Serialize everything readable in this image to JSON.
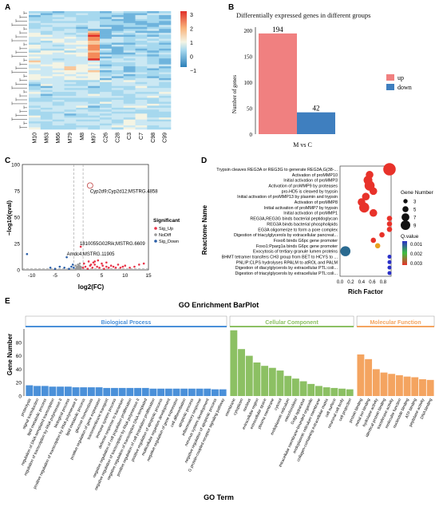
{
  "panels": {
    "A": "A",
    "B": "B",
    "C": "C",
    "D": "D",
    "E": "E"
  },
  "heatmap": {
    "samples": [
      "M10",
      "M63",
      "M66",
      "M79",
      "M8",
      "M97",
      "C26",
      "C28",
      "C3",
      "C7",
      "C98",
      "C99"
    ],
    "scale_ticks": [
      "3",
      "2",
      "1",
      "0",
      "−1"
    ]
  },
  "chart_data": [
    {
      "id": "B",
      "type": "bar",
      "title": "Differentially expressed genes in different groups",
      "xlabel": "M vs C",
      "ylabel": "Number of genes",
      "ylim": [
        0,
        200
      ],
      "yticks": [
        "0",
        "50",
        "100",
        "150",
        "200"
      ],
      "series": [
        {
          "name": "up",
          "values": [
            194
          ],
          "color": "#f08080"
        },
        {
          "name": "down",
          "values": [
            42
          ],
          "color": "#3f7fbf"
        }
      ],
      "data_labels": [
        "194",
        "42"
      ],
      "legend": "right"
    },
    {
      "id": "C",
      "type": "scatter",
      "xlabel": "log2(FC)",
      "ylabel": "−log10(qval)",
      "xlim": [
        -12,
        15
      ],
      "ylim": [
        0,
        100
      ],
      "xticks": [
        "-10",
        "-5",
        "0",
        "5",
        "10",
        "15"
      ],
      "yticks": [
        "0",
        "25",
        "50",
        "75",
        "100"
      ],
      "legend_title": "Significant",
      "legend": [
        "Sig_Up",
        "NoDiff",
        "Sig_Down"
      ],
      "annotations": [
        {
          "text": "Cyp2d9;Cyp2d12;MSTRG.4858",
          "x": 2.5,
          "y": 80
        },
        {
          "text": "1810055G02Rik;MSTRG.6609",
          "x": 0.3,
          "y": 22
        },
        {
          "text": "Amdc4;MSTRG.11905",
          "x": -2.5,
          "y": 12
        }
      ],
      "highlight": {
        "x": 2.5,
        "y": 80
      },
      "up_points": [
        [
          1,
          2
        ],
        [
          1.5,
          3
        ],
        [
          2,
          1
        ],
        [
          2.5,
          4
        ],
        [
          3,
          2
        ],
        [
          3.5,
          5
        ],
        [
          4,
          3
        ],
        [
          4.5,
          2
        ],
        [
          5,
          6
        ],
        [
          5.5,
          1
        ],
        [
          6,
          3
        ],
        [
          6.5,
          2
        ],
        [
          7,
          4
        ],
        [
          7.5,
          3
        ],
        [
          8,
          2
        ],
        [
          8.5,
          5
        ],
        [
          9,
          2
        ],
        [
          9.5,
          3
        ],
        [
          10,
          4
        ],
        [
          11,
          2
        ],
        [
          12,
          3
        ],
        [
          13,
          5
        ],
        [
          14,
          6
        ],
        [
          1.2,
          6
        ],
        [
          2.2,
          8
        ],
        [
          3.2,
          7
        ],
        [
          0.5,
          22
        ],
        [
          3.5,
          8
        ],
        [
          4.2,
          9
        ],
        [
          6,
          7
        ],
        [
          2.7,
          5
        ],
        [
          5.2,
          4
        ]
      ],
      "down_points": [
        [
          -1,
          2
        ],
        [
          -1.5,
          3
        ],
        [
          -2,
          1
        ],
        [
          -2.5,
          12
        ],
        [
          -3,
          2
        ],
        [
          -4,
          3
        ],
        [
          -5,
          1
        ],
        [
          -6,
          2
        ],
        [
          -1.2,
          5
        ],
        [
          -11,
          15
        ]
      ],
      "nodiff_points": [
        [
          0,
          1
        ],
        [
          0.2,
          2
        ],
        [
          -0.2,
          3
        ],
        [
          0.4,
          1
        ],
        [
          -0.4,
          2
        ],
        [
          0.1,
          4
        ],
        [
          -0.1,
          5
        ],
        [
          0.3,
          6
        ],
        [
          -0.3,
          2
        ],
        [
          0.5,
          3
        ],
        [
          -0.5,
          1
        ],
        [
          0.6,
          2
        ],
        [
          -0.6,
          4
        ],
        [
          0.05,
          0.5
        ],
        [
          0.15,
          1.5
        ],
        [
          -0.15,
          2.5
        ],
        [
          0.25,
          3.5
        ],
        [
          -0.25,
          0.8
        ],
        [
          0.35,
          1.2
        ],
        [
          -0.35,
          1.8
        ]
      ]
    },
    {
      "id": "D",
      "type": "scatter",
      "xlabel": "Rich Factor",
      "ylabel": "Reactome Name",
      "xlim": [
        0,
        0.95
      ],
      "xticks": [
        "0.0",
        "0.2",
        "0.4",
        "0.6",
        "0.8"
      ],
      "size_legend_title": "Gene Number",
      "size_legend": [
        "3",
        "5",
        "7",
        "9"
      ],
      "color_legend_title": "Q.value",
      "color_legend": [
        "0.003",
        "0.002",
        "0.001"
      ],
      "terms": [
        {
          "name": "Trypsin cleaves REG3A or REG3G to generate REG3A,G(38-...",
          "x": 0.92,
          "size": 9,
          "color": "#e8322a"
        },
        {
          "name": "Activation of proMMP10",
          "x": 0.55,
          "size": 5,
          "color": "#e8322a"
        },
        {
          "name": "Initial activation of proMMP3",
          "x": 0.52,
          "size": 6,
          "color": "#e8322a"
        },
        {
          "name": "Activation of proMMP9 by proteases",
          "x": 0.55,
          "size": 7,
          "color": "#e8322a"
        },
        {
          "name": "pro-HD5 is cleaved by trypsin",
          "x": 0.62,
          "size": 5,
          "color": "#e8322a"
        },
        {
          "name": "Initial activation of proMMP13 by plasmin and trypsin",
          "x": 0.48,
          "size": 5,
          "color": "#e8322a"
        },
        {
          "name": "Activation of proMMP8",
          "x": 0.4,
          "size": 5,
          "color": "#e8322a"
        },
        {
          "name": "Initial activation of proMMP7 by trypsin",
          "x": 0.45,
          "size": 7,
          "color": "#e8322a"
        },
        {
          "name": "Initial activation of proMMP1",
          "x": 0.62,
          "size": 5,
          "color": "#e8322a"
        },
        {
          "name": "REG3A,REG3G binds bacterial peptidoglycan",
          "x": 0.92,
          "size": 3,
          "color": "#e8322a"
        },
        {
          "name": "REG3A binds bacterial phospholipids",
          "x": 0.92,
          "size": 3,
          "color": "#e8322a"
        },
        {
          "name": "EG3A oligomerize to form a pore complex",
          "x": 0.92,
          "size": 3,
          "color": "#e8322a"
        },
        {
          "name": "Digestion of triacylglycerols by extracellular pancreat...",
          "x": 0.78,
          "size": 3,
          "color": "#e8322a"
        },
        {
          "name": "Foxo6 binds G6pc gene promoter",
          "x": 0.62,
          "size": 3,
          "color": "#e8322a"
        },
        {
          "name": "Foxo1:Pparg1a binds G6pc gene promoter",
          "x": 0.7,
          "size": 3,
          "color": "#e8a020"
        },
        {
          "name": "Exocytosis of tertiary granule lumen proteins",
          "x": 0.1,
          "size": 7,
          "color": "#2a6a90"
        },
        {
          "name": "BHMT tetramer transfers CH3 group from BET to HCYS to ...",
          "x": 0.92,
          "size": 2,
          "color": "#2a30c8"
        },
        {
          "name": "PNLIP:CLPS hydrolyses RPALM to atROL and PALM",
          "x": 0.92,
          "size": 2,
          "color": "#2a30c8"
        },
        {
          "name": "Digestion of diacylglycerols by extracellular PTL:coli...",
          "x": 0.92,
          "size": 2,
          "color": "#2a30c8"
        },
        {
          "name": "Digestion of triacylglycerols by extracellular PTL:coli...",
          "x": 0.92,
          "size": 2,
          "color": "#2a30c8"
        }
      ]
    },
    {
      "id": "E",
      "type": "bar",
      "title": "GO Enrichment BarPlot",
      "xlabel": "GO Term",
      "ylabel": "Gene Number",
      "ylim": [
        0,
        100
      ],
      "yticks": [
        "0",
        "20",
        "40",
        "60",
        "80"
      ],
      "series": [
        {
          "name": "Biological Process",
          "color": "#4a90d9",
          "categories": [
            "proteolysis",
            "signal transduction",
            "lipid metabolic process",
            "regulation of DNA-templated transcription",
            "regulation of transcription by RNA polymerase II",
            "biological process",
            "positive regulation of transcription by RNA polymerase II",
            "lipid metabolic process",
            "glucose homeostasis",
            "positive regulation of gene expression",
            "transmembrane transport",
            "immune system process",
            "defense response to bacterium",
            "negative regulation of cell population proliferation",
            "negative regulation of transcription by RNA polymerase II",
            "negative regulation of transcription DNA-templated",
            "positive regulation of cell population proliferation",
            "positive regulation of apoptotic process",
            "multicellular organism development",
            "negative regulation of gene expression",
            "cell differentiation",
            "apoptotic process",
            "inflammatory response",
            "nervous system development",
            "negative regulation of apoptotic process",
            "G protein-coupled receptor signaling pathway"
          ],
          "values": [
            16,
            15,
            15,
            14,
            14,
            14,
            13,
            13,
            13,
            13,
            12,
            12,
            12,
            12,
            12,
            12,
            11,
            11,
            11,
            11,
            11,
            11,
            11,
            11,
            10,
            10
          ]
        },
        {
          "name": "Cellular Component",
          "color": "#8cc063",
          "categories": [
            "membrane",
            "cytoplasm",
            "nucleus",
            "extracellular region",
            "extracellular space",
            "plasma membrane",
            "cytosol",
            "endoplasmic reticulum",
            "mitochondrion",
            "Golgi apparatus",
            "intracellular membrane-bounded organelle",
            "endoplasmic reticulum membrane",
            "collagen-containing extracellular matrix",
            "cell surface",
            "neuronal cell body",
            "cell projection"
          ],
          "values": [
            98,
            70,
            60,
            50,
            45,
            42,
            38,
            30,
            26,
            22,
            18,
            15,
            13,
            12,
            11,
            10
          ]
        },
        {
          "name": "Molecular Function",
          "color": "#f4a460",
          "categories": [
            "protein binding",
            "metal ion binding",
            "hydrolase activity",
            "identical protein binding",
            "transferase activity",
            "molecular function",
            "nucleotide binding",
            "ATP binding",
            "peptidase activity",
            "DNA binding"
          ],
          "values": [
            62,
            55,
            40,
            35,
            33,
            31,
            29,
            28,
            25,
            24
          ]
        }
      ]
    }
  ]
}
